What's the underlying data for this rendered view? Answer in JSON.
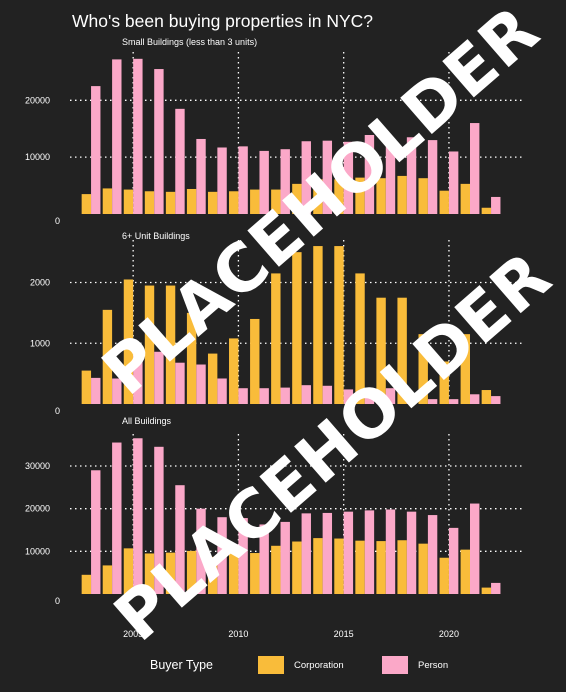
{
  "title": "Who's been buying properties in NYC?",
  "legend": {
    "title": "Buyer Type",
    "items": [
      {
        "label": "Corporation",
        "color": "#F9BC3A"
      },
      {
        "label": "Person",
        "color": "#FBA8C8"
      }
    ]
  },
  "watermark": [
    "PLACEHOLDER",
    "PLACEHOLDER"
  ],
  "chart_data": [
    {
      "type": "bar",
      "title": "Small Buildings (less than 3 units)",
      "x": [
        2003,
        2004,
        2005,
        2006,
        2007,
        2008,
        2009,
        2010,
        2011,
        2012,
        2013,
        2014,
        2015,
        2016,
        2017,
        2018,
        2019,
        2020,
        2021,
        2022
      ],
      "series": [
        {
          "name": "Corporation",
          "values": [
            3500,
            4500,
            4300,
            4000,
            3900,
            4400,
            3900,
            4000,
            4300,
            4300,
            5300,
            6100,
            6100,
            6400,
            6300,
            6700,
            6300,
            4100,
            5300,
            1100
          ]
        },
        {
          "name": "Person",
          "values": [
            22500,
            27200,
            27300,
            25500,
            18500,
            13200,
            11700,
            11900,
            11100,
            11400,
            12800,
            12900,
            12700,
            13900,
            13000,
            13500,
            13000,
            11000,
            16000,
            3000
          ]
        }
      ],
      "yticks": [
        0,
        10000,
        20000
      ],
      "ylim": [
        0,
        28500
      ]
    },
    {
      "type": "bar",
      "title": "6+ Unit Buildings",
      "x": [
        2003,
        2004,
        2005,
        2006,
        2007,
        2008,
        2009,
        2010,
        2011,
        2012,
        2013,
        2014,
        2015,
        2016,
        2017,
        2018,
        2019,
        2020,
        2021,
        2022
      ],
      "series": [
        {
          "name": "Corporation",
          "values": [
            550,
            1550,
            2050,
            1950,
            1950,
            1500,
            830,
            1080,
            1400,
            2150,
            2500,
            2600,
            2600,
            2150,
            1750,
            1750,
            1150,
            700,
            1150,
            230
          ]
        },
        {
          "name": "Person",
          "values": [
            430,
            420,
            800,
            860,
            680,
            650,
            420,
            260,
            260,
            270,
            310,
            300,
            240,
            230,
            260,
            150,
            80,
            80,
            160,
            130
          ]
        }
      ],
      "yticks": [
        0,
        1000,
        2000
      ],
      "ylim": [
        0,
        2700
      ]
    },
    {
      "type": "bar",
      "title": "All Buildings",
      "x": [
        2003,
        2004,
        2005,
        2006,
        2007,
        2008,
        2009,
        2010,
        2011,
        2012,
        2013,
        2014,
        2015,
        2016,
        2017,
        2018,
        2019,
        2020,
        2021,
        2022
      ],
      "series": [
        {
          "name": "Corporation",
          "values": [
            4500,
            6700,
            10700,
            9500,
            9700,
            10100,
            8700,
            9700,
            9600,
            11300,
            12300,
            13100,
            13000,
            12500,
            12400,
            12600,
            11800,
            8500,
            10400,
            1500
          ]
        },
        {
          "name": "Person",
          "values": [
            29000,
            35500,
            36500,
            34500,
            25500,
            20000,
            18000,
            17800,
            16300,
            16900,
            18900,
            19000,
            19300,
            19600,
            19800,
            19300,
            18500,
            15500,
            21200,
            2600
          ]
        }
      ],
      "yticks": [
        0,
        10000,
        20000,
        30000
      ],
      "ylim": [
        0,
        37500
      ]
    }
  ],
  "x_axis": {
    "ticks": [
      "2005",
      "2010",
      "2015",
      "2020"
    ]
  }
}
